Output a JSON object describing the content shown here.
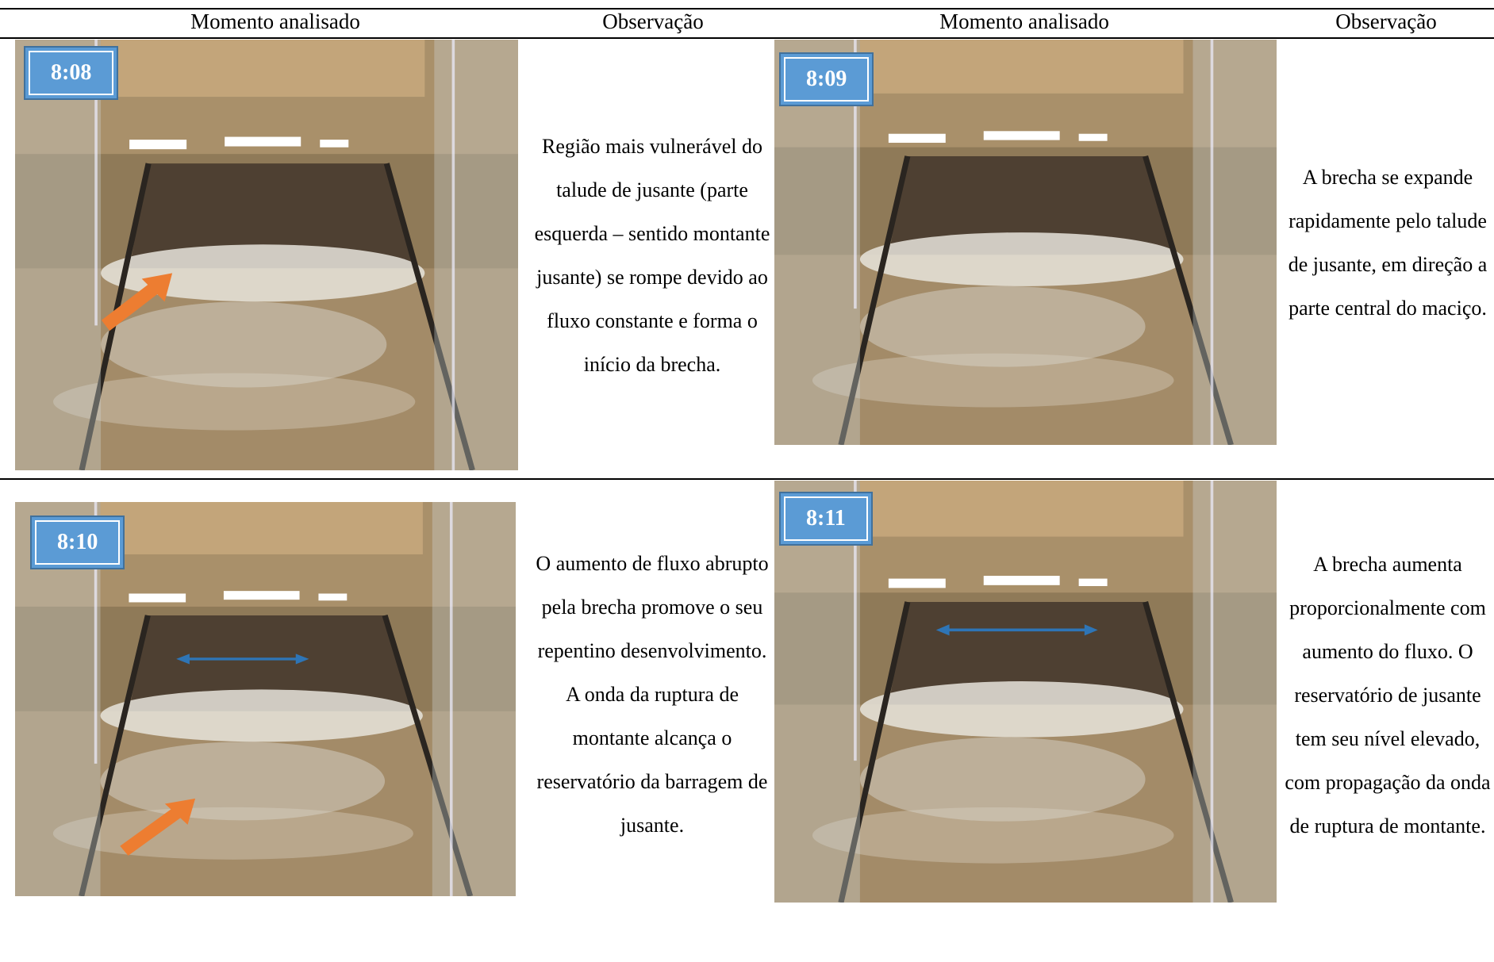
{
  "table": {
    "headers": [
      "Momento analisado",
      "Observação",
      "Momento analisado",
      "Observação"
    ],
    "rows": [
      [
        {
          "time": "8:08",
          "observation": "Região mais vulnerável do talude de jusante (parte esquerda – sentido montante jusante) se rompe devido ao fluxo constante e forma o início da brecha."
        },
        {
          "time": "8:09",
          "observation": "A brecha se expande rapidamente pelo talude de jusante, em direção a parte central do maciço."
        }
      ],
      [
        {
          "time": "8:10",
          "observation": "O aumento de fluxo abrupto pela brecha promove o seu repentino desenvolvimento. A onda da ruptura de montante alcança o reservatório da barragem de jusante."
        },
        {
          "time": "8:11",
          "observation": "A brecha aumenta proporcionalmente com aumento do fluxo. O reservatório de jusante tem seu nível elevado, com propagação da onda de ruptura de montante."
        }
      ]
    ]
  }
}
